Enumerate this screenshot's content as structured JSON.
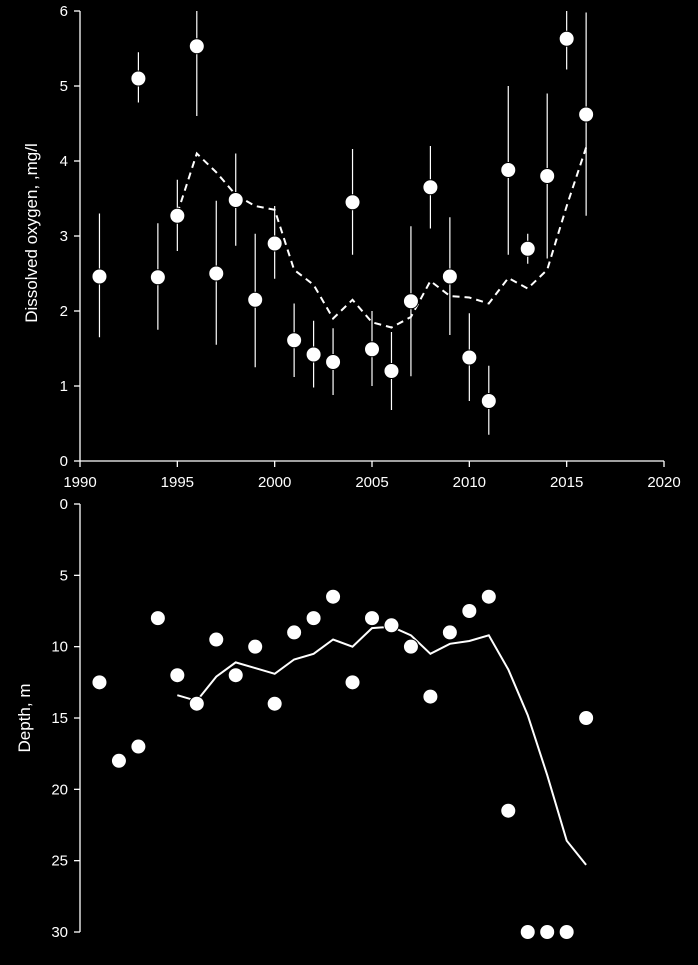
{
  "chart_data": [
    {
      "type": "scatter",
      "name": "top-panel",
      "ylabel": "Dissolved oxygen, ,mg/l",
      "xlabel": "",
      "xlim": [
        1990,
        2020
      ],
      "ylim": [
        0,
        6
      ],
      "xticks": [
        1990,
        1995,
        2000,
        2005,
        2010,
        2015,
        2020
      ],
      "yticks": [
        0,
        1,
        2,
        3,
        4,
        5,
        6
      ],
      "grid": false,
      "points": [
        {
          "x": 1991,
          "y": 2.46,
          "lo": 1.65,
          "hi": 3.3
        },
        {
          "x": 1993,
          "y": 5.1,
          "lo": 4.78,
          "hi": 5.45
        },
        {
          "x": 1994,
          "y": 2.45,
          "lo": 1.75,
          "hi": 3.17
        },
        {
          "x": 1995,
          "y": 3.27,
          "lo": 2.8,
          "hi": 3.75
        },
        {
          "x": 1996,
          "y": 5.53,
          "lo": 4.6,
          "hi": 6.0
        },
        {
          "x": 1997,
          "y": 2.5,
          "lo": 1.55,
          "hi": 3.47
        },
        {
          "x": 1998,
          "y": 3.48,
          "lo": 2.87,
          "hi": 4.1
        },
        {
          "x": 1999,
          "y": 2.15,
          "lo": 1.25,
          "hi": 3.03
        },
        {
          "x": 2000,
          "y": 2.9,
          "lo": 2.43,
          "hi": 3.4
        },
        {
          "x": 2001,
          "y": 1.61,
          "lo": 1.12,
          "hi": 2.1
        },
        {
          "x": 2002,
          "y": 1.42,
          "lo": 0.98,
          "hi": 1.87
        },
        {
          "x": 2003,
          "y": 1.32,
          "lo": 0.88,
          "hi": 1.77
        },
        {
          "x": 2004,
          "y": 3.45,
          "lo": 2.75,
          "hi": 4.16
        },
        {
          "x": 2005,
          "y": 1.49,
          "lo": 1.0,
          "hi": 2.0
        },
        {
          "x": 2006,
          "y": 1.2,
          "lo": 0.68,
          "hi": 1.72
        },
        {
          "x": 2007,
          "y": 2.13,
          "lo": 1.13,
          "hi": 3.13
        },
        {
          "x": 2008,
          "y": 3.65,
          "lo": 3.1,
          "hi": 4.2
        },
        {
          "x": 2009,
          "y": 2.46,
          "lo": 1.68,
          "hi": 3.25
        },
        {
          "x": 2010,
          "y": 1.38,
          "lo": 0.8,
          "hi": 1.97
        },
        {
          "x": 2011,
          "y": 0.8,
          "lo": 0.35,
          "hi": 1.27
        },
        {
          "x": 2012,
          "y": 3.88,
          "lo": 2.75,
          "hi": 5.0
        },
        {
          "x": 2013,
          "y": 2.83,
          "lo": 2.63,
          "hi": 3.03
        },
        {
          "x": 2014,
          "y": 3.8,
          "lo": 2.7,
          "hi": 4.9
        },
        {
          "x": 2015,
          "y": 5.63,
          "lo": 5.22,
          "hi": 6.0
        },
        {
          "x": 2016,
          "y": 4.62,
          "lo": 3.27,
          "hi": 5.98
        }
      ],
      "trend": {
        "style": "dashed",
        "x": [
          1995,
          1996,
          1997,
          1998,
          1999,
          2000,
          2001,
          2002,
          2003,
          2004,
          2005,
          2006,
          2007,
          2008,
          2009,
          2010,
          2011,
          2012,
          2013,
          2014,
          2015,
          2016
        ],
        "y": [
          3.3,
          4.1,
          3.85,
          3.55,
          3.4,
          3.35,
          2.55,
          2.35,
          1.9,
          2.15,
          1.85,
          1.78,
          1.92,
          2.4,
          2.2,
          2.18,
          2.1,
          2.44,
          2.3,
          2.55,
          3.4,
          4.18
        ]
      }
    },
    {
      "type": "scatter",
      "name": "bottom-panel",
      "ylabel": "Depth, m",
      "xlabel": "",
      "xlim": [
        1990,
        2020
      ],
      "ylim": [
        0,
        30
      ],
      "y_inverted": true,
      "yticks": [
        0,
        5,
        10,
        15,
        20,
        25,
        30
      ],
      "grid": false,
      "points": [
        {
          "x": 1991,
          "y": 12.5
        },
        {
          "x": 1992,
          "y": 18
        },
        {
          "x": 1993,
          "y": 17
        },
        {
          "x": 1994,
          "y": 8
        },
        {
          "x": 1995,
          "y": 12
        },
        {
          "x": 1996,
          "y": 14
        },
        {
          "x": 1997,
          "y": 9.5
        },
        {
          "x": 1998,
          "y": 12
        },
        {
          "x": 1999,
          "y": 10
        },
        {
          "x": 2000,
          "y": 14
        },
        {
          "x": 2001,
          "y": 9
        },
        {
          "x": 2002,
          "y": 8
        },
        {
          "x": 2003,
          "y": 6.5
        },
        {
          "x": 2004,
          "y": 12.5
        },
        {
          "x": 2005,
          "y": 8
        },
        {
          "x": 2006,
          "y": 8.5
        },
        {
          "x": 2007,
          "y": 10
        },
        {
          "x": 2008,
          "y": 13.5
        },
        {
          "x": 2009,
          "y": 9
        },
        {
          "x": 2010,
          "y": 7.5
        },
        {
          "x": 2011,
          "y": 6.5
        },
        {
          "x": 2012,
          "y": 21.5
        },
        {
          "x": 2013,
          "y": 30
        },
        {
          "x": 2014,
          "y": 30
        },
        {
          "x": 2015,
          "y": 30
        },
        {
          "x": 2016,
          "y": 15
        }
      ],
      "trend": {
        "style": "solid",
        "x": [
          1995,
          1996,
          1997,
          1998,
          1999,
          2000,
          2001,
          2002,
          2003,
          2004,
          2005,
          2006,
          2007,
          2008,
          2009,
          2010,
          2011,
          2012,
          2013,
          2014,
          2015,
          2016
        ],
        "y": [
          13.4,
          13.8,
          12.1,
          11.1,
          11.5,
          11.9,
          10.9,
          10.5,
          9.5,
          10.0,
          8.7,
          8.6,
          9.2,
          10.5,
          9.8,
          9.6,
          9.2,
          11.6,
          14.8,
          19.0,
          23.6,
          25.3
        ]
      }
    }
  ]
}
